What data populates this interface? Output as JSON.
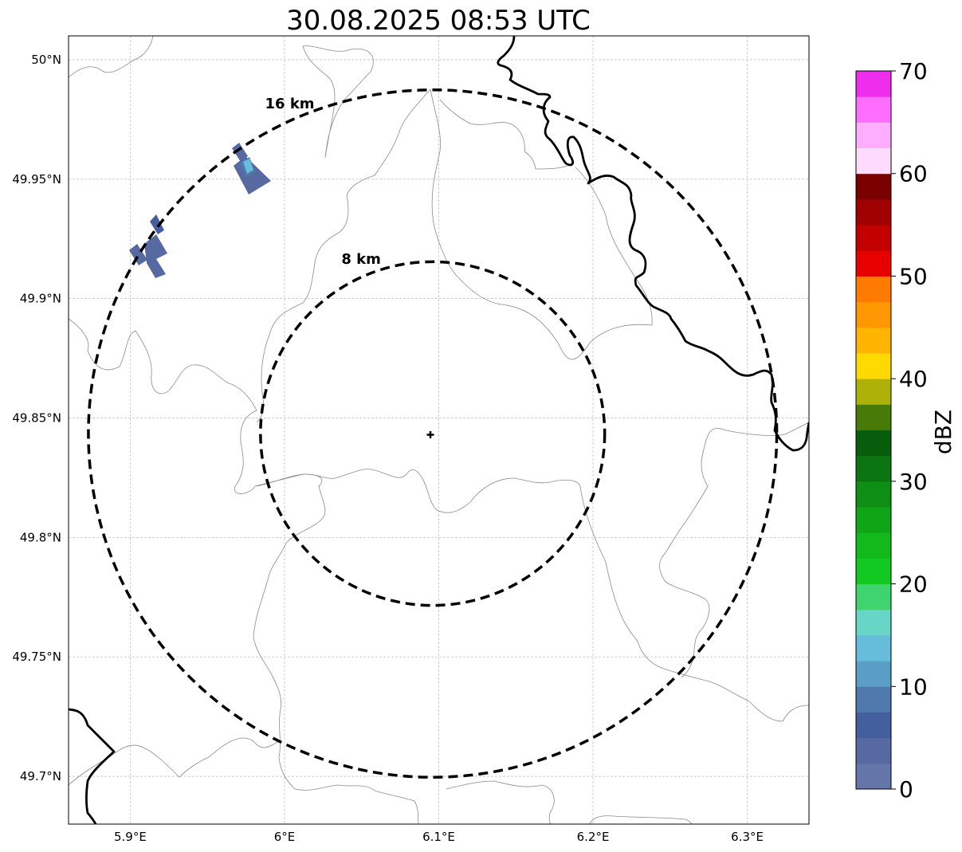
{
  "title": "30.08.2025 08:53 UTC",
  "map": {
    "lon_range": [
      5.86,
      6.34
    ],
    "lat_range": [
      49.68,
      50.01
    ],
    "lat_ticks": [
      {
        "value": 50.0,
        "label": "50°N"
      },
      {
        "value": 49.95,
        "label": "49.95°N"
      },
      {
        "value": 49.9,
        "label": "49.9°N"
      },
      {
        "value": 49.85,
        "label": "49.85°N"
      },
      {
        "value": 49.8,
        "label": "49.8°N"
      },
      {
        "value": 49.75,
        "label": "49.75°N"
      },
      {
        "value": 49.7,
        "label": "49.7°N"
      }
    ],
    "lon_ticks": [
      {
        "value": 5.9,
        "label": "5.9°E"
      },
      {
        "value": 6.0,
        "label": "6°E"
      },
      {
        "value": 6.1,
        "label": "6.1°E"
      },
      {
        "value": 6.2,
        "label": "6.2°E"
      },
      {
        "value": 6.3,
        "label": "6.3°E"
      }
    ],
    "radar_center": {
      "lon": 6.096,
      "lat": 49.8435
    },
    "range_rings": [
      {
        "radius_km": 8,
        "label": "8 km"
      },
      {
        "radius_km": 16,
        "label": "16 km"
      }
    ],
    "grid": true
  },
  "colorbar": {
    "label": "dBZ",
    "min": 0,
    "max": 70,
    "step": 2.5,
    "ticks": [
      "0",
      "10",
      "20",
      "30",
      "40",
      "50",
      "60",
      "70"
    ],
    "colors": [
      "#6476a8",
      "#5669a1",
      "#445f9e",
      "#4f78ad",
      "#5a9ec6",
      "#66bddb",
      "#67d6c6",
      "#3fd470",
      "#12c922",
      "#11b91a",
      "#0fa516",
      "#0e8e14",
      "#0b7511",
      "#075d0c",
      "#487a08",
      "#adb108",
      "#ffd900",
      "#ffb500",
      "#ff9700",
      "#ff7a00",
      "#e60000",
      "#c20000",
      "#a00000",
      "#7a0000",
      "#ffdcff",
      "#ffaeff",
      "#ff6eff",
      "#ee2ded"
    ]
  },
  "echoes": [
    {
      "dbz": 3
    },
    {
      "dbz": 3
    },
    {
      "dbz": 8
    },
    {
      "dbz": 13
    },
    {
      "dbz": 3
    },
    {
      "dbz": 3
    },
    {
      "dbz": 5
    }
  ]
}
